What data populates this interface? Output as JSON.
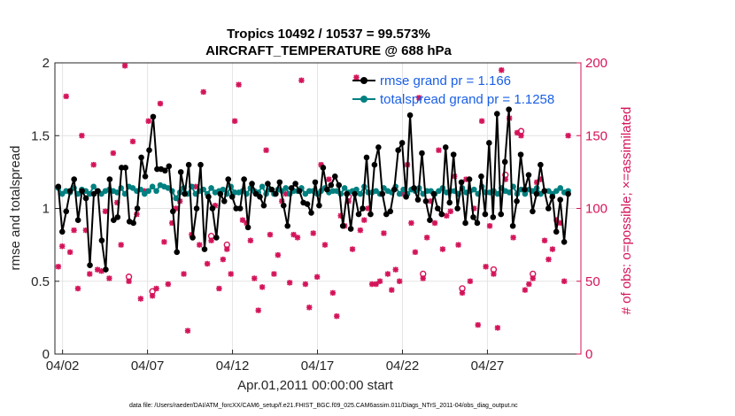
{
  "chart_data": {
    "type": "line",
    "title_line1": "Tropics 10492 / 10537 = 99.573%",
    "title_line2": "AIRCRAFT_TEMPERATURE @ 688 hPa",
    "xlabel": "Apr.01,2011 00:00:00 start",
    "ylabel_left": "rmse and totalspread",
    "ylabel_right": "# of obs: o=possible; ×=assimilated",
    "footnote": "data file: /Users/raeder/DAI/ATM_forcXX/CAM6_setup/f.e21.FHIST_BGC.f09_025.CAM6assim.011/Diags_NTrS_2011-04/obs_diag_output.nc",
    "x_range_days": [
      0.55,
      31.5
    ],
    "ylim_left": [
      0,
      2
    ],
    "ylim_right": [
      0,
      200
    ],
    "x_ticks": [
      {
        "day": 1.0,
        "label": "04/02"
      },
      {
        "day": 6.0,
        "label": "04/07"
      },
      {
        "day": 11.0,
        "label": "04/12"
      },
      {
        "day": 16.0,
        "label": "04/17"
      },
      {
        "day": 21.0,
        "label": "04/22"
      },
      {
        "day": 26.0,
        "label": "04/27"
      }
    ],
    "y_ticks_left": [
      {
        "value": 0,
        "label": "0"
      },
      {
        "value": 0.5,
        "label": "0.5"
      },
      {
        "value": 1,
        "label": "1"
      },
      {
        "value": 1.5,
        "label": "1.5"
      },
      {
        "value": 2,
        "label": "2"
      }
    ],
    "y_ticks_right": [
      {
        "value": 0,
        "label": "0"
      },
      {
        "value": 50,
        "label": "50"
      },
      {
        "value": 100,
        "label": "100"
      },
      {
        "value": 150,
        "label": "150"
      },
      {
        "value": 200,
        "label": "200"
      }
    ],
    "time_step_days": 0.25,
    "time_start_day": 0.75,
    "series": [
      {
        "name": "rmse grand pr = 1.166",
        "legend_label": "rmse grand pr =  1.166",
        "color": "#000000",
        "values": [
          1.15,
          0.84,
          0.98,
          1.12,
          1.2,
          0.92,
          1.12,
          1.07,
          0.61,
          1.1,
          1.12,
          0.78,
          0.58,
          1.2,
          0.92,
          0.94,
          1.28,
          1.28,
          0.91,
          0.9,
          1.0,
          1.35,
          1.22,
          1.4,
          1.63,
          1.27,
          1.27,
          1.26,
          1.29,
          0.98,
          0.7,
          1.25,
          1.1,
          1.3,
          0.8,
          1.0,
          1.3,
          0.72,
          1.08,
          1.0,
          0.8,
          1.1,
          1.05,
          1.2,
          1.08,
          1.0,
          1.0,
          1.2,
          0.87,
          1.17,
          1.1,
          1.08,
          1.02,
          1.17,
          1.13,
          1.1,
          1.18,
          1.02,
          0.88,
          1.14,
          1.17,
          1.12,
          1.04,
          1.03,
          0.97,
          1.18,
          1.02,
          1.28,
          1.13,
          1.16,
          1.22,
          1.16,
          0.88,
          1.1,
          0.86,
          1.1,
          0.96,
          1.0,
          1.35,
          0.96,
          1.3,
          1.42,
          1.1,
          0.96,
          0.98,
          1.13,
          1.4,
          1.45,
          1.08,
          1.64,
          1.14,
          1.06,
          1.38,
          1.05,
          0.92,
          1.1,
          1.0,
          0.96,
          1.42,
          1.04,
          1.37,
          1.0,
          1.18,
          0.9,
          1.2,
          0.94,
          0.9,
          1.22,
          0.96,
          1.45,
          0.94,
          1.65,
          0.96,
          1.32,
          1.68,
          0.88,
          1.05,
          1.37,
          1.13,
          1.23,
          0.98,
          1.1,
          1.3,
          1.12,
          1.0,
          1.08,
          0.84,
          1.06,
          0.77,
          1.1
        ]
      },
      {
        "name": "totalspread grand pr = 1.1258",
        "legend_label": "totalspread grand pr =  1.1258",
        "color": "#008080",
        "values": [
          1.14,
          1.1,
          1.12,
          1.11,
          1.14,
          1.1,
          1.13,
          1.12,
          1.1,
          1.15,
          1.12,
          1.1,
          1.12,
          1.13,
          1.12,
          1.11,
          1.14,
          1.1,
          1.15,
          1.14,
          1.12,
          1.13,
          1.1,
          1.12,
          1.15,
          1.12,
          1.16,
          1.15,
          1.14,
          1.12,
          1.07,
          1.11,
          1.14,
          1.1,
          1.15,
          1.1,
          1.12,
          1.13,
          1.1,
          1.14,
          1.11,
          1.12,
          1.13,
          1.1,
          1.15,
          1.11,
          1.11,
          1.12,
          1.1,
          1.14,
          1.12,
          1.11,
          1.15,
          1.1,
          1.13,
          1.1,
          1.13,
          1.12,
          1.14,
          1.1,
          1.12,
          1.12,
          1.14,
          1.1,
          1.12,
          1.12,
          1.1,
          1.12,
          1.14,
          1.11,
          1.12,
          1.12,
          1.1,
          1.14,
          1.11,
          1.12,
          1.13,
          1.1,
          1.15,
          1.11,
          1.11,
          1.12,
          1.1,
          1.14,
          1.12,
          1.11,
          1.15,
          1.1,
          1.13,
          1.1,
          1.13,
          1.12,
          1.14,
          1.1,
          1.12,
          1.12,
          1.1,
          1.12,
          1.14,
          1.11,
          1.12,
          1.12,
          1.1,
          1.14,
          1.11,
          1.12,
          1.13,
          1.1,
          1.15,
          1.11,
          1.11,
          1.12,
          1.1,
          1.14,
          1.12,
          1.11,
          1.15,
          1.1,
          1.13,
          1.1,
          1.13,
          1.12,
          1.14,
          1.1,
          1.12,
          1.12,
          1.1,
          1.12,
          1.14,
          1.11,
          1.12
        ]
      }
    ],
    "obs_color": "#d4145a",
    "obs_counts": [
      60,
      74,
      177,
      70,
      85,
      45,
      150,
      85,
      55,
      130,
      58,
      57,
      98,
      52,
      138,
      104,
      75,
      198,
      50,
      146,
      96,
      38,
      112,
      160,
      40,
      45,
      172,
      77,
      48,
      90,
      100,
      105,
      55,
      16,
      82,
      115,
      75,
      180,
      62,
      78,
      102,
      45,
      65,
      72,
      55,
      160,
      185,
      92,
      90,
      78,
      52,
      30,
      46,
      140,
      82,
      55,
      68,
      105,
      110,
      49,
      82,
      80,
      188,
      48,
      32,
      83,
      53,
      130,
      75,
      120,
      42,
      26,
      95,
      88,
      105,
      72,
      190,
      85,
      92,
      100,
      48,
      48,
      50,
      83,
      55,
      44,
      58,
      50,
      110,
      130,
      90,
      70,
      176,
      52,
      80,
      105,
      90,
      140,
      72,
      95,
      98,
      122,
      75,
      42,
      120,
      50,
      100,
      20,
      160,
      60,
      88,
      55,
      18,
      195,
      120,
      162,
      80,
      152,
      150,
      44,
      48,
      52,
      118,
      120,
      78,
      65,
      72,
      92,
      90,
      50,
      150
    ],
    "obs_possible_circled": [
      18,
      24,
      39,
      43,
      74,
      93,
      103,
      111,
      114,
      118,
      121
    ]
  }
}
